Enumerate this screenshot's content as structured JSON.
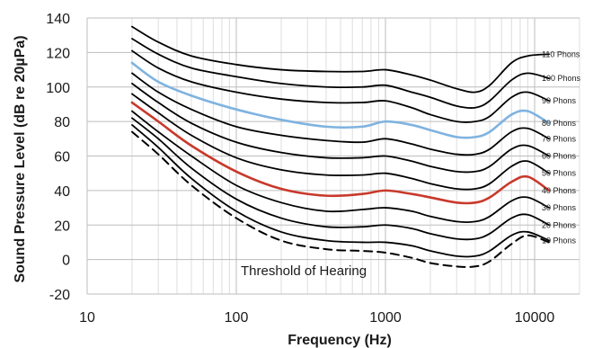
{
  "chart_data": {
    "type": "line",
    "xlabel": "Frequency (Hz)",
    "ylabel": "Sound Pressure Level (dB re 20µPa)",
    "x_scale": "log",
    "xlim": [
      10,
      20000
    ],
    "ylim": [
      -20,
      140
    ],
    "x_ticks": [
      10,
      100,
      1000,
      10000
    ],
    "y_ticks": [
      -20,
      0,
      20,
      40,
      60,
      80,
      100,
      120,
      140
    ],
    "grid": true,
    "annotation": "Threshold of Hearing",
    "x": [
      20,
      30,
      50,
      100,
      200,
      400,
      700,
      1000,
      1500,
      2000,
      3000,
      4000,
      5000,
      7000,
      9000,
      12500
    ],
    "series": [
      {
        "name": "110 Phons",
        "color": "#000000",
        "dashed": false,
        "values": [
          135,
          126,
          118,
          113,
          110,
          109,
          109,
          110,
          107,
          104,
          99,
          97,
          101,
          114,
          118,
          119
        ]
      },
      {
        "name": "100 Phons",
        "color": "#000000",
        "dashed": false,
        "values": [
          128,
          119,
          111,
          106,
          102,
          100,
          100,
          101,
          97,
          94,
          89,
          88,
          92,
          104,
          108,
          105
        ]
      },
      {
        "name": "90 Phons",
        "color": "#000000",
        "dashed": false,
        "values": [
          121,
          111,
          103,
          97,
          93,
          91,
          91,
          92,
          88,
          84,
          80,
          80,
          83,
          94,
          97,
          92
        ]
      },
      {
        "name": "80 Phons",
        "color": "#7fb3e0",
        "dashed": false,
        "values": [
          114,
          103,
          95,
          87,
          81,
          77,
          77,
          80,
          78,
          75,
          71,
          71,
          74,
          84,
          86,
          79
        ]
      },
      {
        "name": "70 Phons",
        "color": "#000000",
        "dashed": false,
        "values": [
          108,
          97,
          87,
          77,
          72,
          69,
          68,
          70,
          67,
          64,
          61,
          61,
          64,
          74,
          76,
          70
        ]
      },
      {
        "name": "60 Phons",
        "color": "#000000",
        "dashed": false,
        "values": [
          102,
          91,
          79,
          68,
          62,
          59,
          59,
          60,
          57,
          54,
          51,
          51,
          54,
          64,
          66,
          60
        ]
      },
      {
        "name": "50 Phons",
        "color": "#000000",
        "dashed": false,
        "values": [
          96,
          85,
          72,
          59,
          52,
          49,
          49,
          50,
          47,
          44,
          41,
          41,
          44,
          54,
          57,
          50
        ]
      },
      {
        "name": "40 Phons",
        "color": "#c8392b",
        "dashed": false,
        "values": [
          91,
          80,
          66,
          51,
          41,
          37,
          38,
          40,
          38,
          36,
          33,
          33,
          36,
          45,
          48,
          40
        ]
      },
      {
        "name": "30 Phons",
        "color": "#000000",
        "dashed": false,
        "values": [
          86,
          74,
          60,
          43,
          33,
          28,
          29,
          30,
          28,
          25,
          22,
          22,
          25,
          34,
          36,
          30
        ]
      },
      {
        "name": "20 Phons",
        "color": "#000000",
        "dashed": false,
        "values": [
          82,
          70,
          53,
          35,
          24,
          19,
          19,
          20,
          18,
          15,
          12,
          12,
          15,
          24,
          26,
          20
        ]
      },
      {
        "name": "10 Phons",
        "color": "#000000",
        "dashed": false,
        "values": [
          78,
          65,
          47,
          28,
          16,
          11,
          10,
          10,
          8,
          5,
          2,
          2,
          5,
          14,
          16,
          11
        ]
      },
      {
        "name": "Threshold of Hearing",
        "color": "#000000",
        "dashed": true,
        "values": [
          74,
          61,
          43,
          24,
          11,
          6,
          5,
          4,
          1,
          -2,
          -4,
          -4,
          -1,
          9,
          14,
          10
        ]
      }
    ]
  }
}
